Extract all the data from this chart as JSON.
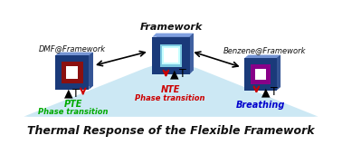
{
  "title": "Thermal Response of the Flexible Framework",
  "bg_color": "#ffffff",
  "triangle_bg_color": "#cce8f4",
  "label_framework": "Framework",
  "label_dmf": "DMF@Framework",
  "label_benzene": "Benzene@Framework",
  "nte_color": "#cc0000",
  "pte_color": "#00aa00",
  "breathing_color": "#0000cc",
  "red_arrow_color": "#cc0000",
  "framework_outer_color": "#1a3a7a",
  "framework_inner_color": "#7ac8e0",
  "dmf_outer_color": "#1a3a7a",
  "dmf_inner_color": "#8b1010",
  "benzene_outer_color": "#1a3a7a",
  "benzene_inner_color": "#880088",
  "figsize": [
    3.78,
    1.6
  ],
  "dpi": 100
}
